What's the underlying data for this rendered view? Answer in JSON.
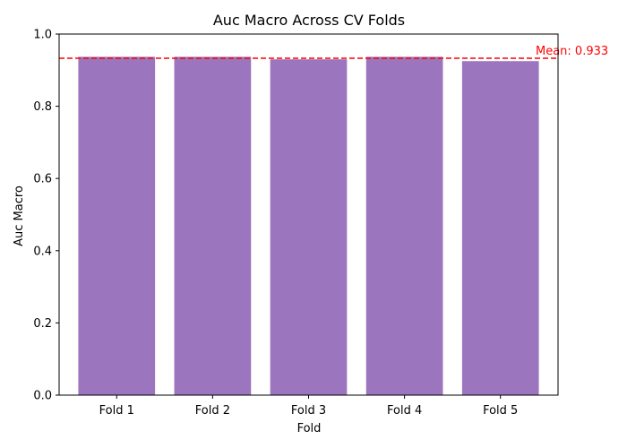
{
  "chart_data": {
    "type": "bar",
    "title": "Auc Macro Across CV Folds",
    "xlabel": "Fold",
    "ylabel": "Auc Macro",
    "categories": [
      "Fold 1",
      "Fold 2",
      "Fold 3",
      "Fold 4",
      "Fold 5"
    ],
    "values": [
      0.937,
      0.937,
      0.93,
      0.937,
      0.925
    ],
    "ylim": [
      0,
      1.0
    ],
    "yticks": [
      "0.0",
      "0.2",
      "0.4",
      "0.6",
      "0.8",
      "1.0"
    ],
    "bar_color": "#9b75bd",
    "mean": {
      "value": 0.933,
      "label": "Mean: 0.933",
      "color": "#ff0000",
      "style": "dashed"
    },
    "grid": false,
    "legend": "none"
  }
}
